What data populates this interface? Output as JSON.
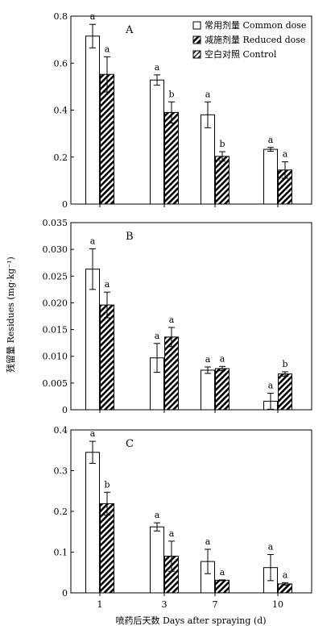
{
  "chart_data": {
    "type": "bar",
    "categories": [
      "1",
      "3",
      "7",
      "10"
    ],
    "xlabel": "喷药后天数 Days after spraying (d)",
    "ylabel": "残留量 Residues (mg·kg⁻¹)",
    "legend": {
      "placement": "top-right",
      "entries": [
        {
          "label": "常用剂量 Common dose",
          "pattern": "open"
        },
        {
          "label": "减施剂量 Reduced dose",
          "pattern": "dense-hatch"
        },
        {
          "label": "空白对照 Control",
          "pattern": "light-hatch"
        }
      ]
    },
    "panels": [
      {
        "label": "A",
        "ylim": [
          0,
          0.8
        ],
        "yticks": [
          "0",
          "0.2",
          "0.4",
          "0.6",
          "0.8"
        ],
        "yticks_values": [
          0,
          0.2,
          0.4,
          0.6,
          0.8
        ],
        "series": [
          {
            "values": [
              0.715,
              0.528,
              0.38,
              0.233
            ],
            "errors": [
              0.05,
              0.022,
              0.055,
              0.008
            ],
            "letters": [
              "a",
              "a",
              "a",
              "a"
            ]
          },
          {
            "values": [
              0.552,
              0.39,
              0.203,
              0.145
            ],
            "errors": [
              0.075,
              0.045,
              0.02,
              0.035
            ],
            "letters": [
              "a",
              "b",
              "b",
              "a"
            ]
          }
        ]
      },
      {
        "label": "B",
        "ylim": [
          0,
          0.035
        ],
        "yticks": [
          "0",
          "0.005",
          "0.010",
          "0.015",
          "0.020",
          "0.025",
          "0.030",
          "0.035"
        ],
        "yticks_values": [
          0,
          0.005,
          0.01,
          0.015,
          0.02,
          0.025,
          0.03,
          0.035
        ],
        "series": [
          {
            "values": [
              0.0263,
              0.0097,
              0.0074,
              0.0016
            ],
            "errors": [
              0.0038,
              0.0027,
              0.0006,
              0.0015
            ],
            "letters": [
              "a",
              "a",
              "a",
              "a"
            ]
          },
          {
            "values": [
              0.0196,
              0.0136,
              0.0077,
              0.0067
            ],
            "errors": [
              0.0024,
              0.0018,
              0.0004,
              0.0004
            ],
            "letters": [
              "a",
              "a",
              "a",
              "b"
            ]
          }
        ]
      },
      {
        "label": "C",
        "ylim": [
          0,
          0.4
        ],
        "yticks": [
          "0",
          "0.1",
          "0.2",
          "0.3",
          "0.4"
        ],
        "yticks_values": [
          0,
          0.1,
          0.2,
          0.3,
          0.4
        ],
        "series": [
          {
            "values": [
              0.345,
              0.162,
              0.077,
              0.062
            ],
            "errors": [
              0.027,
              0.01,
              0.03,
              0.032
            ],
            "letters": [
              "a",
              "a",
              "a",
              "a"
            ]
          },
          {
            "values": [
              0.219,
              0.09,
              0.031,
              0.022
            ],
            "errors": [
              0.028,
              0.037,
              0.001,
              0.003
            ],
            "letters": [
              "b",
              "a",
              "a",
              "a"
            ]
          }
        ]
      }
    ]
  }
}
